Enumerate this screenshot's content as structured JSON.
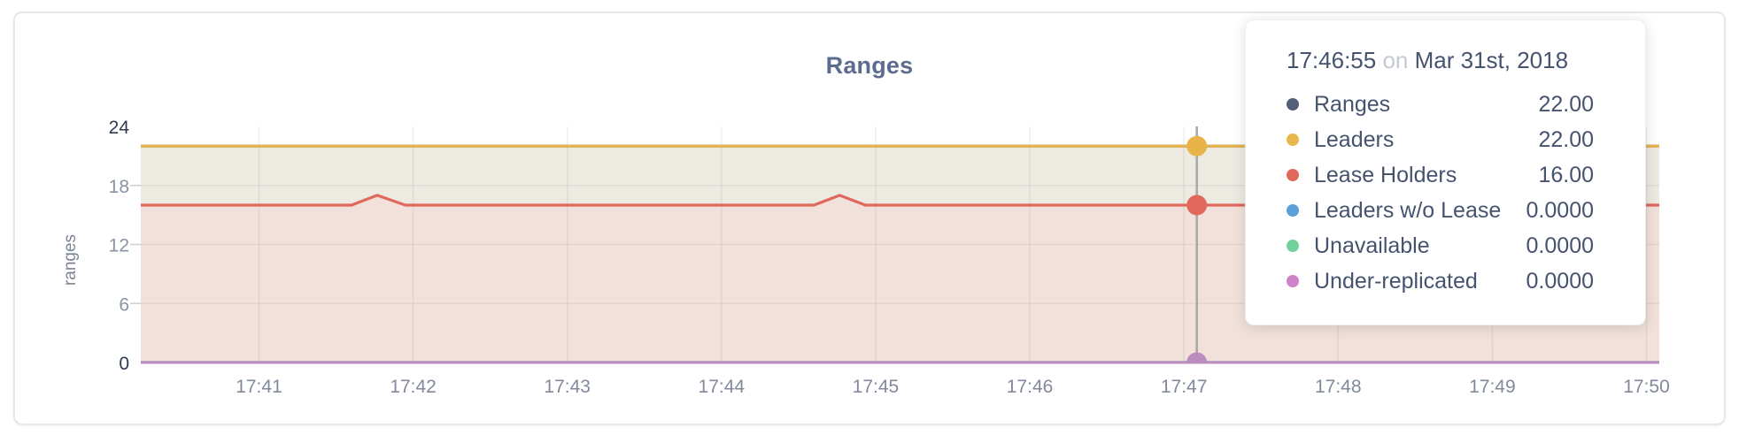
{
  "chart_data": {
    "type": "area-line",
    "title": "Ranges",
    "ylabel": "ranges",
    "ylim": [
      0,
      24
    ],
    "yticks": [
      {
        "v": 24,
        "label": "24"
      },
      {
        "v": 18,
        "label": "18"
      },
      {
        "v": 12,
        "label": "12"
      },
      {
        "v": 6,
        "label": "6"
      },
      {
        "v": 0,
        "label": "0"
      }
    ],
    "ygrid": [
      6,
      12,
      18
    ],
    "x_domain_seconds": [
      14,
      605
    ],
    "xticks": [
      {
        "t": 60,
        "label": "17:41"
      },
      {
        "t": 120,
        "label": "17:42"
      },
      {
        "t": 180,
        "label": "17:43"
      },
      {
        "t": 240,
        "label": "17:44"
      },
      {
        "t": 300,
        "label": "17:45"
      },
      {
        "t": 360,
        "label": "17:46"
      },
      {
        "t": 420,
        "label": "17:47"
      },
      {
        "t": 480,
        "label": "17:48"
      },
      {
        "t": 540,
        "label": "17:49"
      },
      {
        "t": 600,
        "label": "17:50"
      }
    ],
    "series": [
      {
        "name": "Ranges",
        "color": "#535F7A",
        "points": [
          [
            14,
            22
          ],
          [
            605,
            22
          ]
        ]
      },
      {
        "name": "Leaders",
        "color": "#E8B44A",
        "points": [
          [
            14,
            22
          ],
          [
            605,
            22
          ]
        ]
      },
      {
        "name": "Lease Holders",
        "color": "#E0685C",
        "points": [
          [
            14,
            16
          ],
          [
            96,
            16
          ],
          [
            106,
            17
          ],
          [
            117,
            16
          ],
          [
            276,
            16
          ],
          [
            286,
            17
          ],
          [
            296,
            16
          ],
          [
            605,
            16
          ]
        ]
      },
      {
        "name": "Leaders w/o Lease",
        "color": "#5C9FD9",
        "points": [
          [
            14,
            0
          ],
          [
            605,
            0
          ]
        ]
      },
      {
        "name": "Unavailable",
        "color": "#72D09A",
        "points": [
          [
            14,
            0
          ],
          [
            605,
            0
          ]
        ]
      },
      {
        "name": "Under-replicated",
        "color": "#BC8CBF",
        "points": [
          [
            14,
            0
          ],
          [
            605,
            0
          ]
        ]
      }
    ],
    "fills": [
      {
        "upper": "Leaders",
        "lower": "Lease Holders",
        "color": "#EDEAE2"
      },
      {
        "upper": "Lease Holders",
        "lower": 0,
        "color": "#F1E1DA"
      }
    ],
    "hover": {
      "t": 425,
      "line_color": "#A9A9A9",
      "markers": [
        {
          "series": "Leaders",
          "v": 22
        },
        {
          "series": "Lease Holders",
          "v": 16
        },
        {
          "series": "Under-replicated",
          "v": 0
        }
      ]
    },
    "legend_position": "tooltip-overlay",
    "grid": true
  },
  "tooltip": {
    "time": "17:46:55",
    "connector": "on",
    "date": "Mar 31st, 2018",
    "rows": [
      {
        "name": "Ranges",
        "value": "22.00",
        "color": "#535F7A"
      },
      {
        "name": "Leaders",
        "value": "22.00",
        "color": "#E8B74D"
      },
      {
        "name": "Lease Holders",
        "value": "16.00",
        "color": "#E0685D"
      },
      {
        "name": "Leaders w/o Lease",
        "value": "0.0000",
        "color": "#5C9FD9"
      },
      {
        "name": "Unavailable",
        "value": "0.0000",
        "color": "#72D09A"
      },
      {
        "name": "Under-replicated",
        "value": "0.0000",
        "color": "#CC83C8"
      }
    ]
  }
}
